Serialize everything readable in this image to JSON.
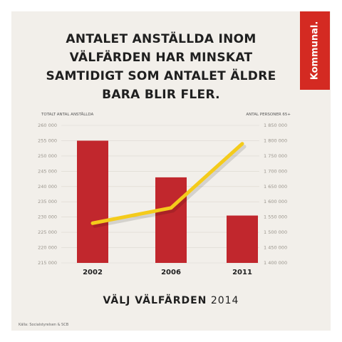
{
  "title": "ANTALET ANSTÄLLDA INOM VÄLFÄRDEN HAR MINSKAT SAMTIDIGT SOM ANTALET ÄLDRE BARA BLIR FLER.",
  "brand": "Kommunal.",
  "footer": {
    "bold": "VÄLJ VÄLFÄRDEN",
    "year": "2014"
  },
  "source": "Källa: Socialstyrelsen & SCB",
  "colors": {
    "bar": "#c1272d",
    "line": "#f4cb1b",
    "background": "#f2efea",
    "brand": "#d42a22"
  },
  "chart_data": {
    "type": "bar",
    "categories": [
      "2002",
      "2006",
      "2011"
    ],
    "left_axis": {
      "label": "TOTALT ANTAL ANSTÄLLDA",
      "ylim": [
        215000,
        260000
      ],
      "ticks": [
        "260 000",
        "255 000",
        "250 000",
        "245 000",
        "240 000",
        "235 000",
        "230 000",
        "225 000",
        "220 000",
        "215 000"
      ]
    },
    "right_axis": {
      "label": "ANTAL PERSONER 65+",
      "ylim": [
        1400000,
        1850000
      ],
      "ticks": [
        "1 850 000",
        "1 800 000",
        "1 750 000",
        "1 700 000",
        "1 650 000",
        "1 600 000",
        "1 550 000",
        "1 500 000",
        "1 450 000",
        "1 400 000"
      ]
    },
    "series": [
      {
        "name": "TOTALT ANTAL ANSTÄLLDA",
        "axis": "left",
        "type": "bar",
        "values": [
          255000,
          243000,
          230500
        ]
      },
      {
        "name": "ANTAL PERSONER 65+",
        "axis": "right",
        "type": "line",
        "values": [
          1530000,
          1580000,
          1790000
        ]
      }
    ],
    "grid": true
  }
}
